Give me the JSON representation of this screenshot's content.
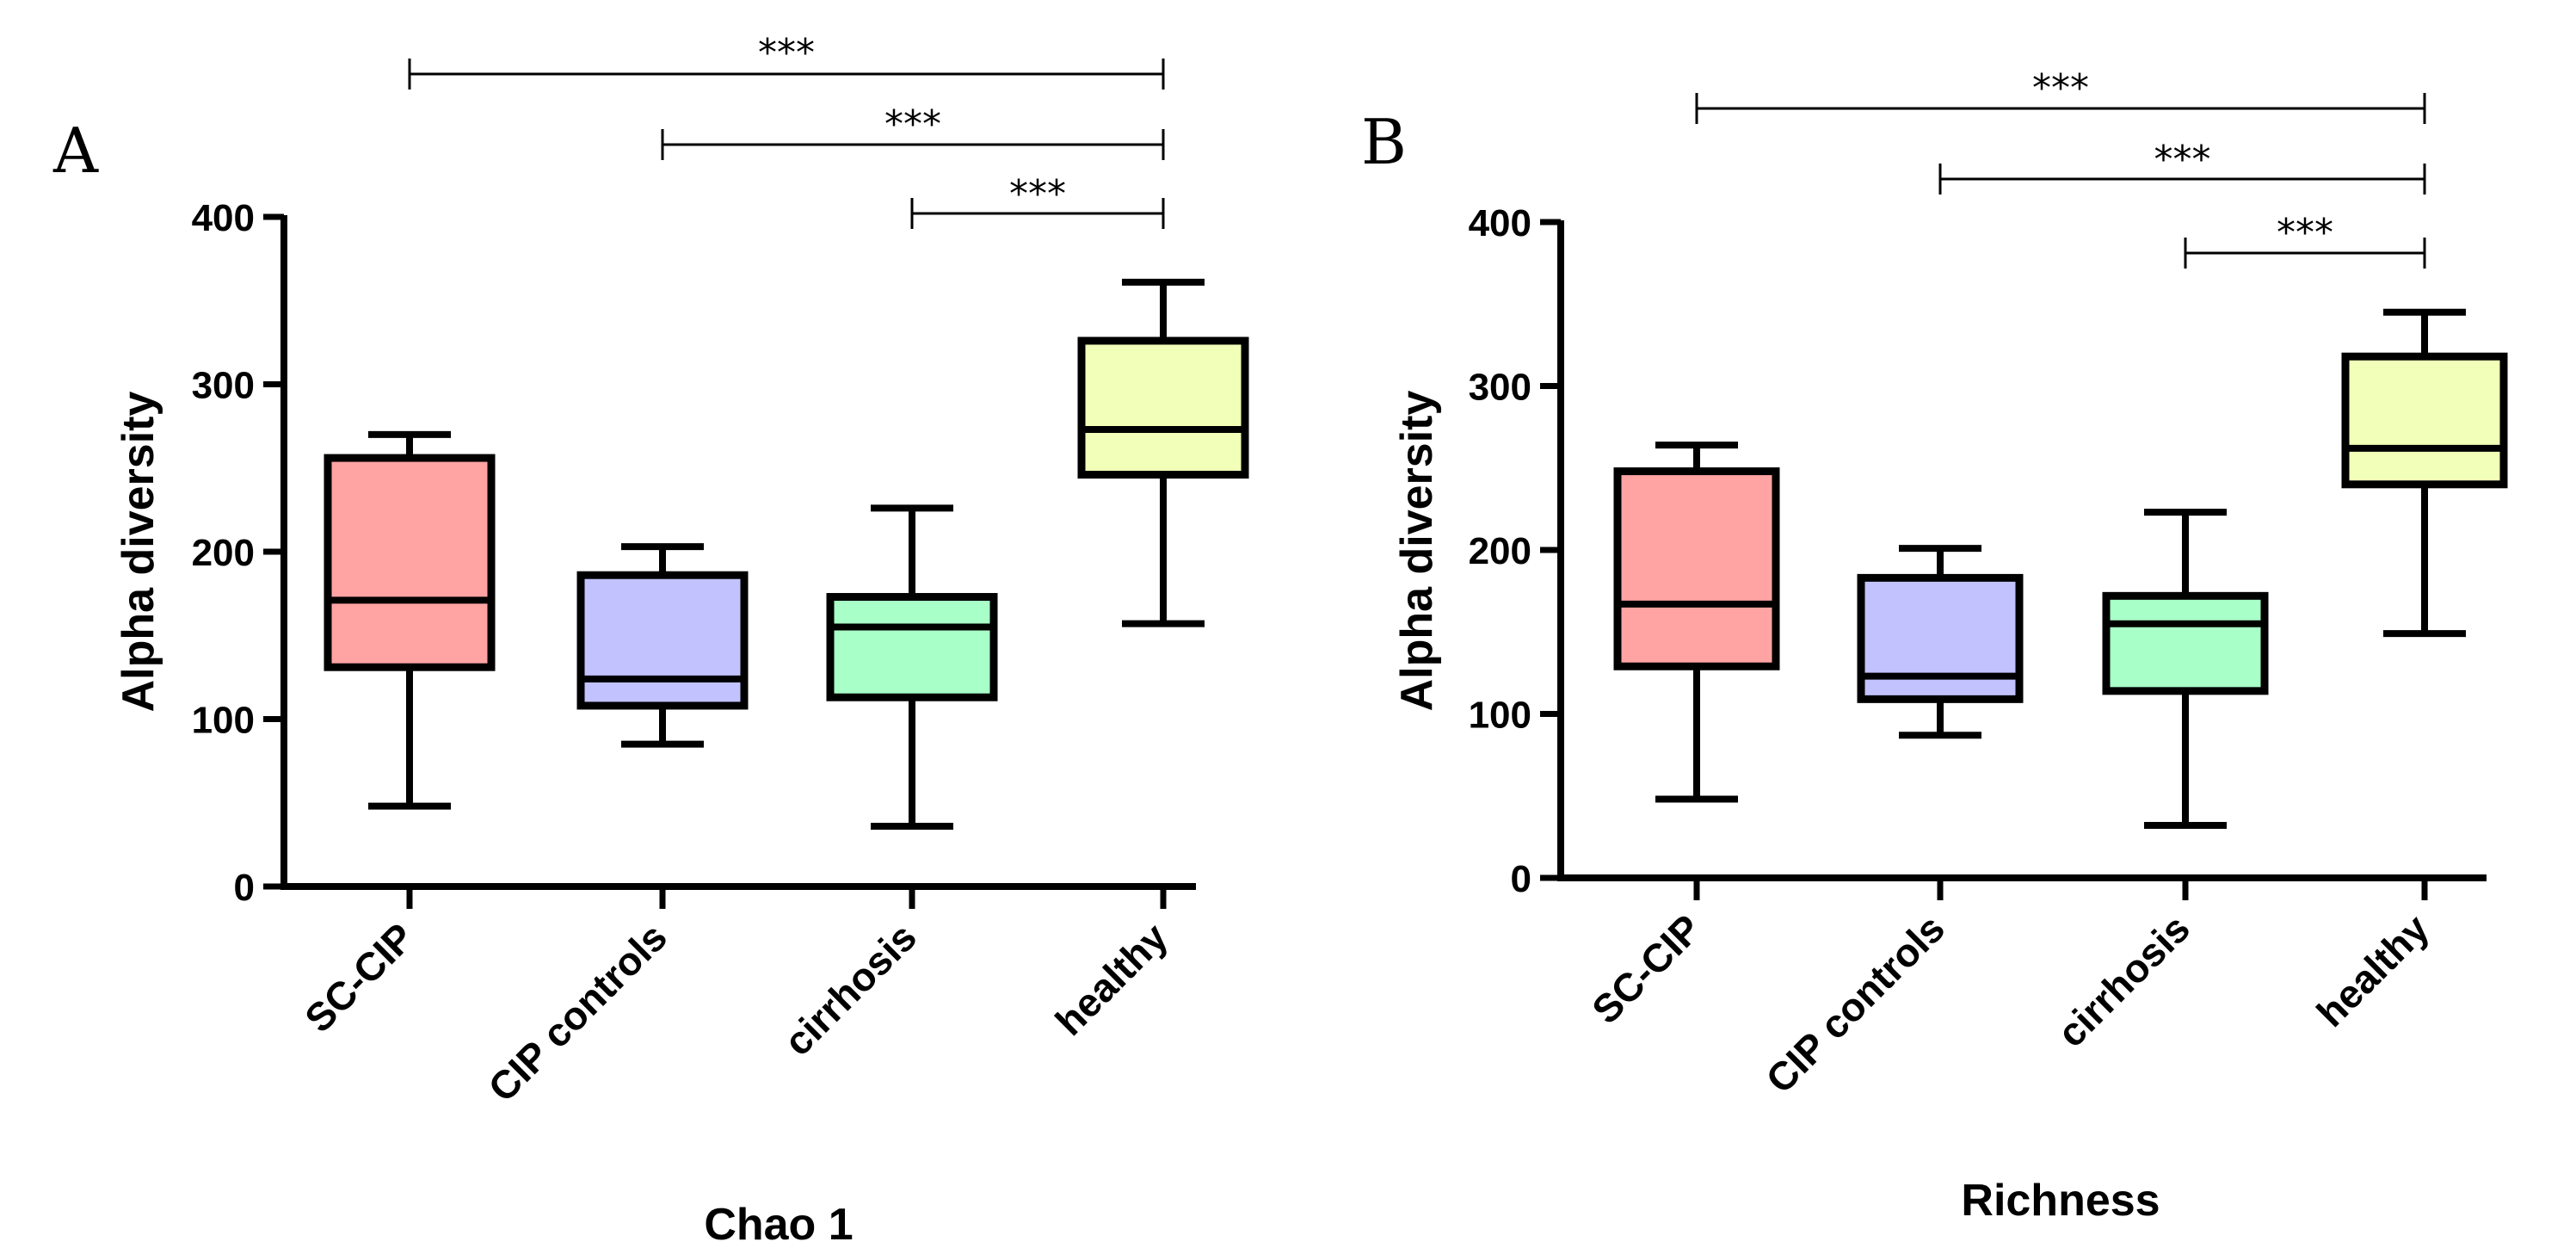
{
  "chart_data": [
    {
      "panel": "A",
      "type": "box",
      "title": "Chao 1",
      "xlabel": "Chao 1",
      "ylabel": "Alpha diversity",
      "ylim": [
        0,
        400
      ],
      "yticks": [
        0,
        100,
        200,
        300,
        400
      ],
      "categories": [
        "SC-CIP",
        "CIP controls",
        "cirrhosis",
        "healthy"
      ],
      "boxes": [
        {
          "category": "SC-CIP",
          "min": 48,
          "q1": 131,
          "median": 171,
          "q3": 256,
          "max": 270,
          "color": "#FFA3A3"
        },
        {
          "category": "CIP controls",
          "min": 85,
          "q1": 108,
          "median": 124,
          "q3": 186,
          "max": 203,
          "color": "#C2C2FF"
        },
        {
          "category": "cirrhosis",
          "min": 36,
          "q1": 113,
          "median": 155,
          "q3": 173,
          "max": 226,
          "color": "#A8FFC8"
        },
        {
          "category": "healthy",
          "min": 157,
          "q1": 246,
          "median": 273,
          "q3": 326,
          "max": 361,
          "color": "#F2FFB8"
        }
      ],
      "significance": [
        {
          "from": "SC-CIP",
          "to": "healthy",
          "label": "***"
        },
        {
          "from": "CIP controls",
          "to": "healthy",
          "label": "***"
        },
        {
          "from": "cirrhosis",
          "to": "healthy",
          "label": "***"
        }
      ]
    },
    {
      "panel": "B",
      "type": "box",
      "title": "Richness",
      "xlabel": "Richness",
      "ylabel": "Alpha diversity",
      "ylim": [
        0,
        400
      ],
      "yticks": [
        0,
        100,
        200,
        300,
        400
      ],
      "categories": [
        "SC-CIP",
        "CIP controls",
        "cirrhosis",
        "healthy"
      ],
      "boxes": [
        {
          "category": "SC-CIP",
          "min": 48,
          "q1": 129,
          "median": 167,
          "q3": 248,
          "max": 264,
          "color": "#FFA3A3"
        },
        {
          "category": "CIP controls",
          "min": 87,
          "q1": 109,
          "median": 123,
          "q3": 183,
          "max": 201,
          "color": "#C2C2FF"
        },
        {
          "category": "cirrhosis",
          "min": 32,
          "q1": 114,
          "median": 155,
          "q3": 172,
          "max": 223,
          "color": "#A8FFC8"
        },
        {
          "category": "healthy",
          "min": 149,
          "q1": 240,
          "median": 262,
          "q3": 318,
          "max": 345,
          "color": "#F2FFB8"
        }
      ],
      "significance": [
        {
          "from": "SC-CIP",
          "to": "healthy",
          "label": "***"
        },
        {
          "from": "CIP controls",
          "to": "healthy",
          "label": "***"
        },
        {
          "from": "cirrhosis",
          "to": "healthy",
          "label": "***"
        }
      ]
    }
  ]
}
